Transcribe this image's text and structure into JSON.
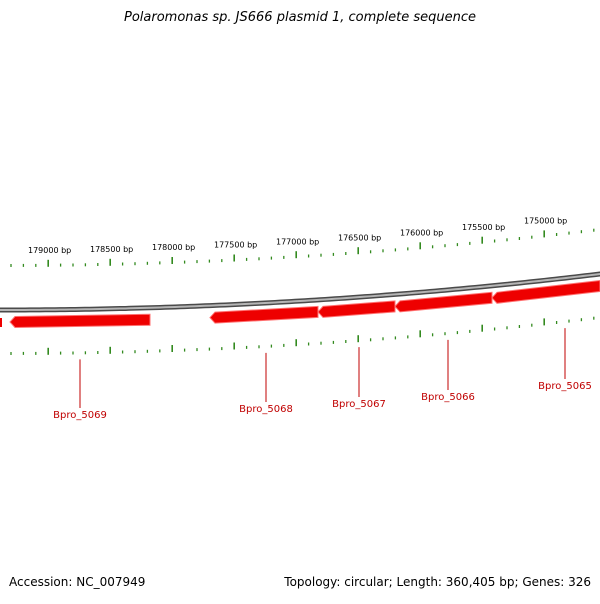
{
  "title": "Polaromonas sp. JS666 plasmid 1, complete sequence",
  "footer": {
    "accession": "Accession: NC_007949",
    "summary": "Topology: circular; Length: 360,405 bp; Genes: 326"
  },
  "colors": {
    "gene_fill": "#ee0000",
    "gene_label": "#c00000",
    "ticks": "#338a1f",
    "backbone": "#7a7a7a"
  },
  "bp_labels": [
    "179000 bp",
    "178500 bp",
    "178000 bp",
    "177500 bp",
    "177000 bp",
    "176500 bp",
    "176000 bp",
    "175500 bp",
    "175000 bp"
  ],
  "genes": [
    {
      "label": "Bpro_5069"
    },
    {
      "label": "Bpro_5068"
    },
    {
      "label": "Bpro_5067"
    },
    {
      "label": "Bpro_5066"
    },
    {
      "label": "Bpro_5065"
    }
  ]
}
